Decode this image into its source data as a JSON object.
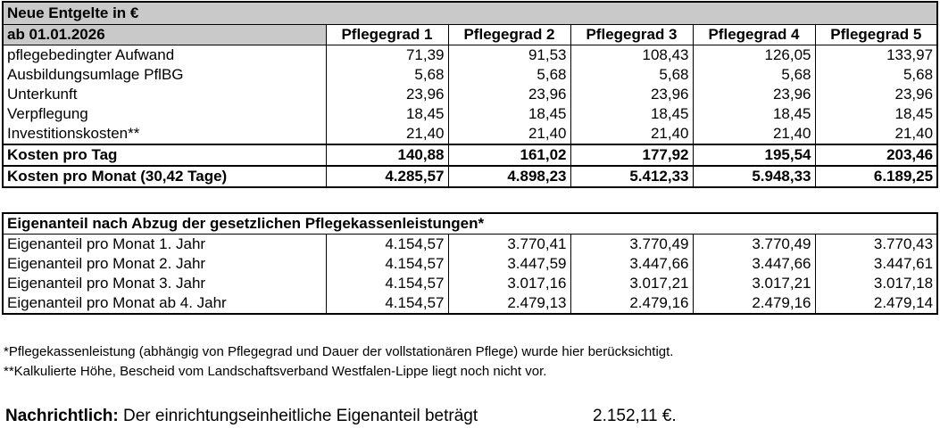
{
  "table1": {
    "title": "Neue Entgelte in €",
    "date_label": "ab 01.01.2026",
    "columns": [
      "Pflegegrad 1",
      "Pflegegrad 2",
      "Pflegegrad 3",
      "Pflegegrad 4",
      "Pflegegrad 5"
    ],
    "rows": [
      {
        "label": "pflegebedingter Aufwand",
        "values": [
          "71,39",
          "91,53",
          "108,43",
          "126,05",
          "133,97"
        ]
      },
      {
        "label": "Ausbildungsumlage PflBG",
        "values": [
          "5,68",
          "5,68",
          "5,68",
          "5,68",
          "5,68"
        ]
      },
      {
        "label": "Unterkunft",
        "values": [
          "23,96",
          "23,96",
          "23,96",
          "23,96",
          "23,96"
        ]
      },
      {
        "label": "Verpflegung",
        "values": [
          "18,45",
          "18,45",
          "18,45",
          "18,45",
          "18,45"
        ]
      },
      {
        "label": "Investitionskosten**",
        "values": [
          "21,40",
          "21,40",
          "21,40",
          "21,40",
          "21,40"
        ]
      }
    ],
    "totals": [
      {
        "label": "Kosten pro Tag",
        "values": [
          "140,88",
          "161,02",
          "177,92",
          "195,54",
          "203,46"
        ]
      },
      {
        "label": "Kosten pro Monat (30,42 Tage)",
        "values": [
          "4.285,57",
          "4.898,23",
          "5.412,33",
          "5.948,33",
          "6.189,25"
        ]
      }
    ]
  },
  "table2": {
    "title": "Eigenanteil nach Abzug der gesetzlichen Pflegekassenleistungen*",
    "rows": [
      {
        "label": "Eigenanteil pro Monat 1. Jahr",
        "values": [
          "4.154,57",
          "3.770,41",
          "3.770,49",
          "3.770,49",
          "3.770,43"
        ]
      },
      {
        "label": "Eigenanteil pro Monat 2. Jahr",
        "values": [
          "4.154,57",
          "3.447,59",
          "3.447,66",
          "3.447,66",
          "3.447,61"
        ]
      },
      {
        "label": "Eigenanteil pro Monat 3. Jahr",
        "values": [
          "4.154,57",
          "3.017,16",
          "3.017,21",
          "3.017,21",
          "3.017,18"
        ]
      },
      {
        "label": "Eigenanteil pro Monat ab 4. Jahr",
        "values": [
          "4.154,57",
          "2.479,13",
          "2.479,16",
          "2.479,16",
          "2.479,14"
        ]
      }
    ]
  },
  "footnotes": {
    "note1": "*Pflegekassenleistung (abhängig von Pflegegrad und Dauer der vollstationären Pflege) wurde hier berücksichtigt.",
    "note2": "**Kalkulierte Höhe, Bescheid vom Landschaftsverband Westfalen-Lippe liegt noch nicht vor."
  },
  "info": {
    "label": "Nachrichtlich:",
    "text": "Der einrichtungseinheitliche Eigenanteil beträgt",
    "value": "2.152,11 €."
  }
}
